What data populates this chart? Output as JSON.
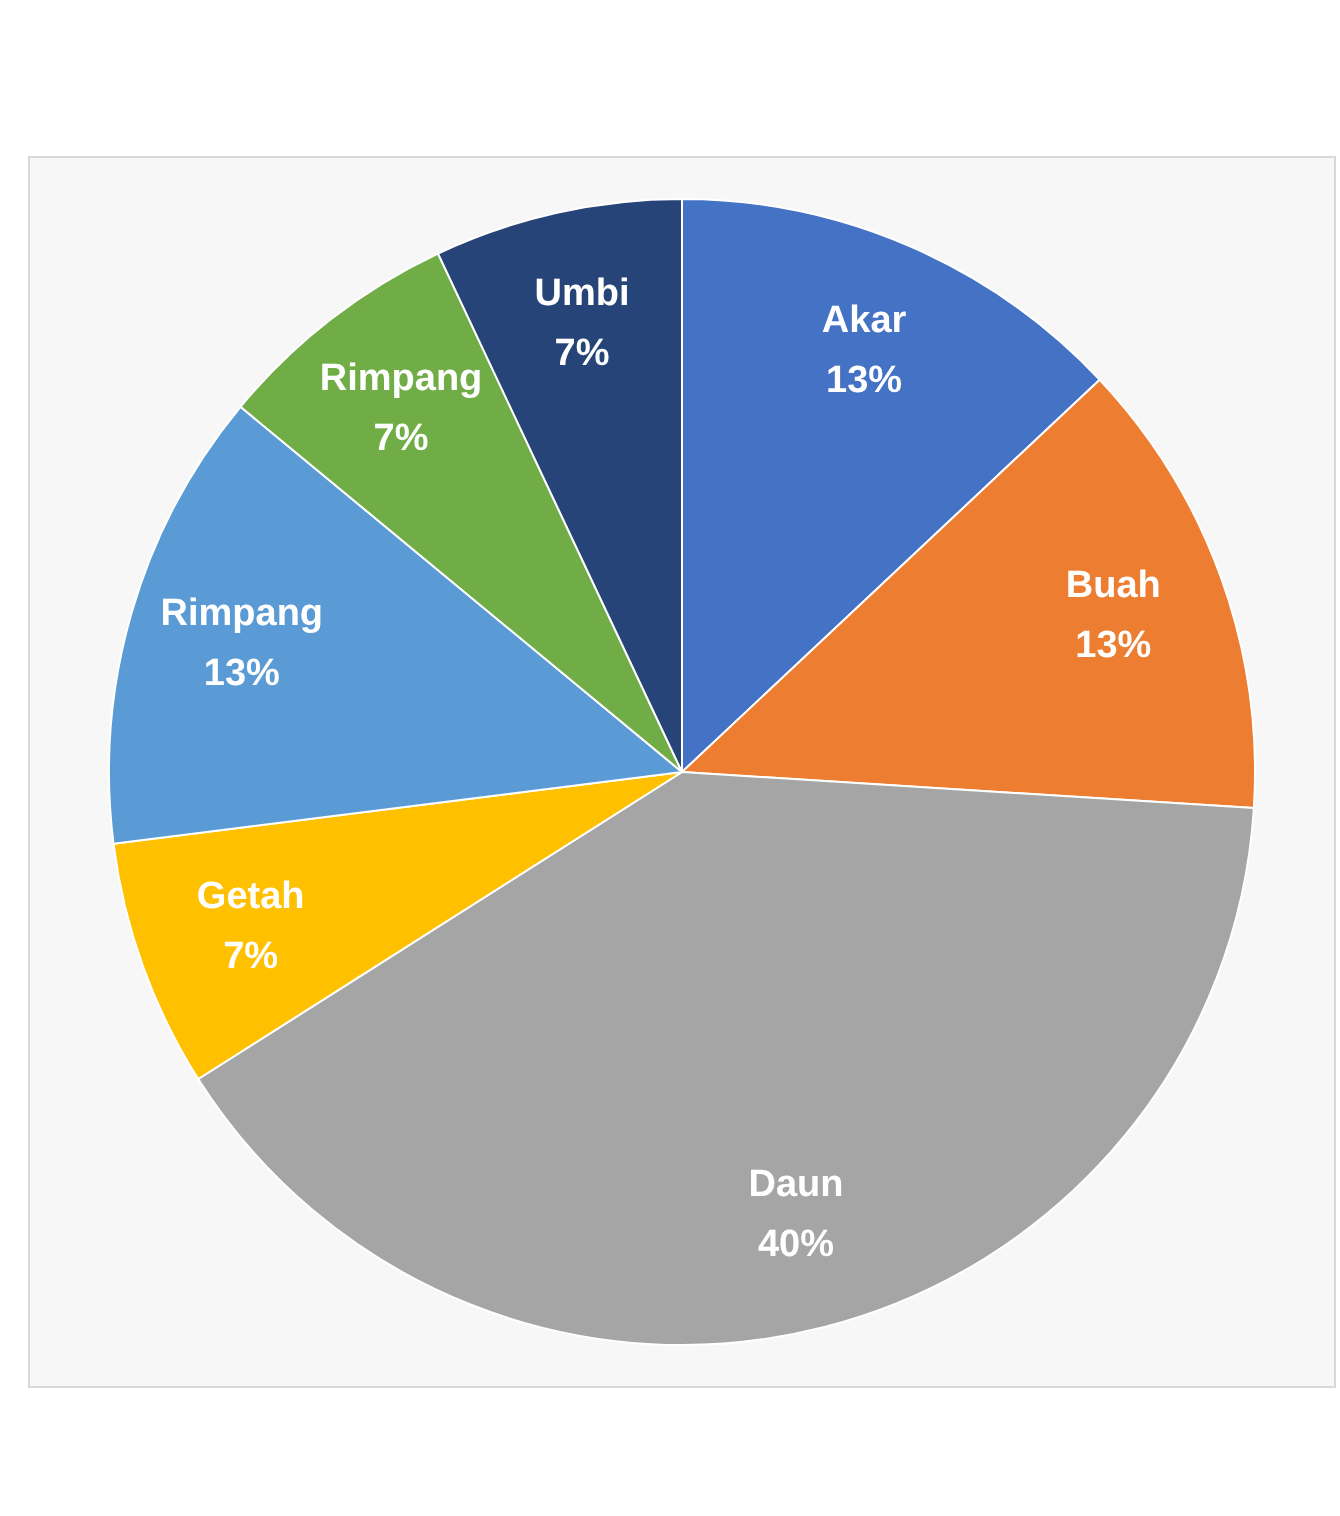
{
  "chart_data": {
    "type": "pie",
    "categories": [
      "Akar",
      "Buah",
      "Daun",
      "Getah",
      "Rimpang",
      "Rimpang",
      "Umbi"
    ],
    "values": [
      13,
      13,
      40,
      7,
      13,
      7,
      7
    ],
    "value_labels": [
      "13%",
      "13%",
      "40%",
      "7%",
      "13%",
      "7%",
      "7%"
    ],
    "colors": [
      "#4472c4",
      "#ed7d31",
      "#a5a5a5",
      "#ffc000",
      "#5b9bd5",
      "#70ad47",
      "#264478"
    ],
    "legend": false
  }
}
